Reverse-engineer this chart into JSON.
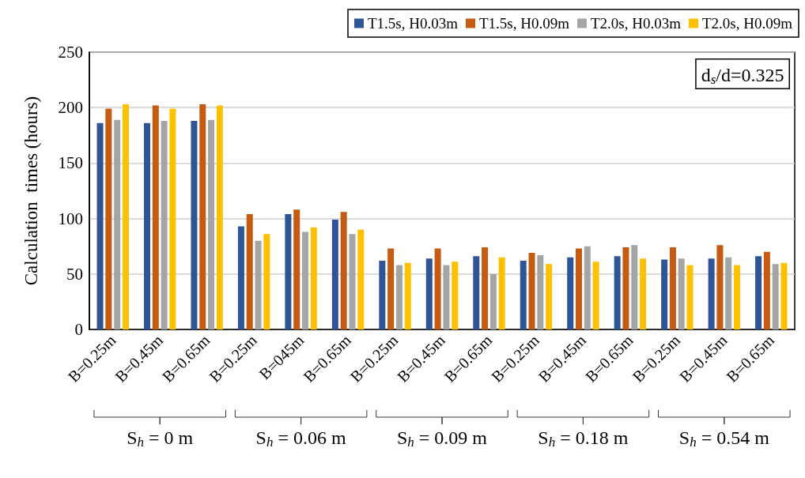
{
  "chart_data": {
    "type": "bar",
    "ylabel": "Calculation  times (hours)",
    "categories": [
      "B=0.25m",
      "B=0.45m",
      "B=0.65m",
      "B=0.25m",
      "B=045m",
      "B=0.65m",
      "B=0.25m",
      "B=0.45m",
      "B=0.65m",
      "B=0.25m",
      "B=0.45m",
      "B=0.65m",
      "B=0.25m",
      "B=0.45m",
      "B=0.65m"
    ],
    "series": [
      {
        "name": "T1.5s, H0.03m",
        "color": "#2f5597",
        "values": [
          186,
          186,
          188,
          93,
          104,
          99,
          62,
          64,
          66,
          62,
          65,
          66,
          63,
          64,
          66
        ]
      },
      {
        "name": "T1.5s, H0.09m",
        "color": "#c55a11",
        "values": [
          199,
          202,
          203,
          104,
          108,
          106,
          73,
          73,
          74,
          69,
          73,
          74,
          74,
          76,
          70
        ]
      },
      {
        "name": "T2.0s, H0.03m",
        "color": "#a5a5a5",
        "values": [
          189,
          188,
          189,
          80,
          88,
          86,
          58,
          58,
          50,
          67,
          75,
          76,
          64,
          65,
          59
        ]
      },
      {
        "name": "T2.0s, H0.09m",
        "color": "#ffc000",
        "values": [
          203,
          199,
          202,
          86,
          92,
          90,
          60,
          61,
          65,
          59,
          61,
          64,
          58,
          58,
          60
        ]
      }
    ],
    "ylim": [
      0,
      250
    ],
    "yticks": [
      0,
      50,
      100,
      150,
      200,
      250
    ],
    "grid": "y",
    "legend": "top right",
    "annotations": [
      "d$_{s}$/d=0.325",
      "S$_{h}$ = 0 m",
      "S$_{h}$ = 0.06 m",
      "S$_{h}$ = 0.09 m",
      "S$_{h}$ = 0.18 m",
      "S$_{h}$ = 0.54 m"
    ]
  }
}
